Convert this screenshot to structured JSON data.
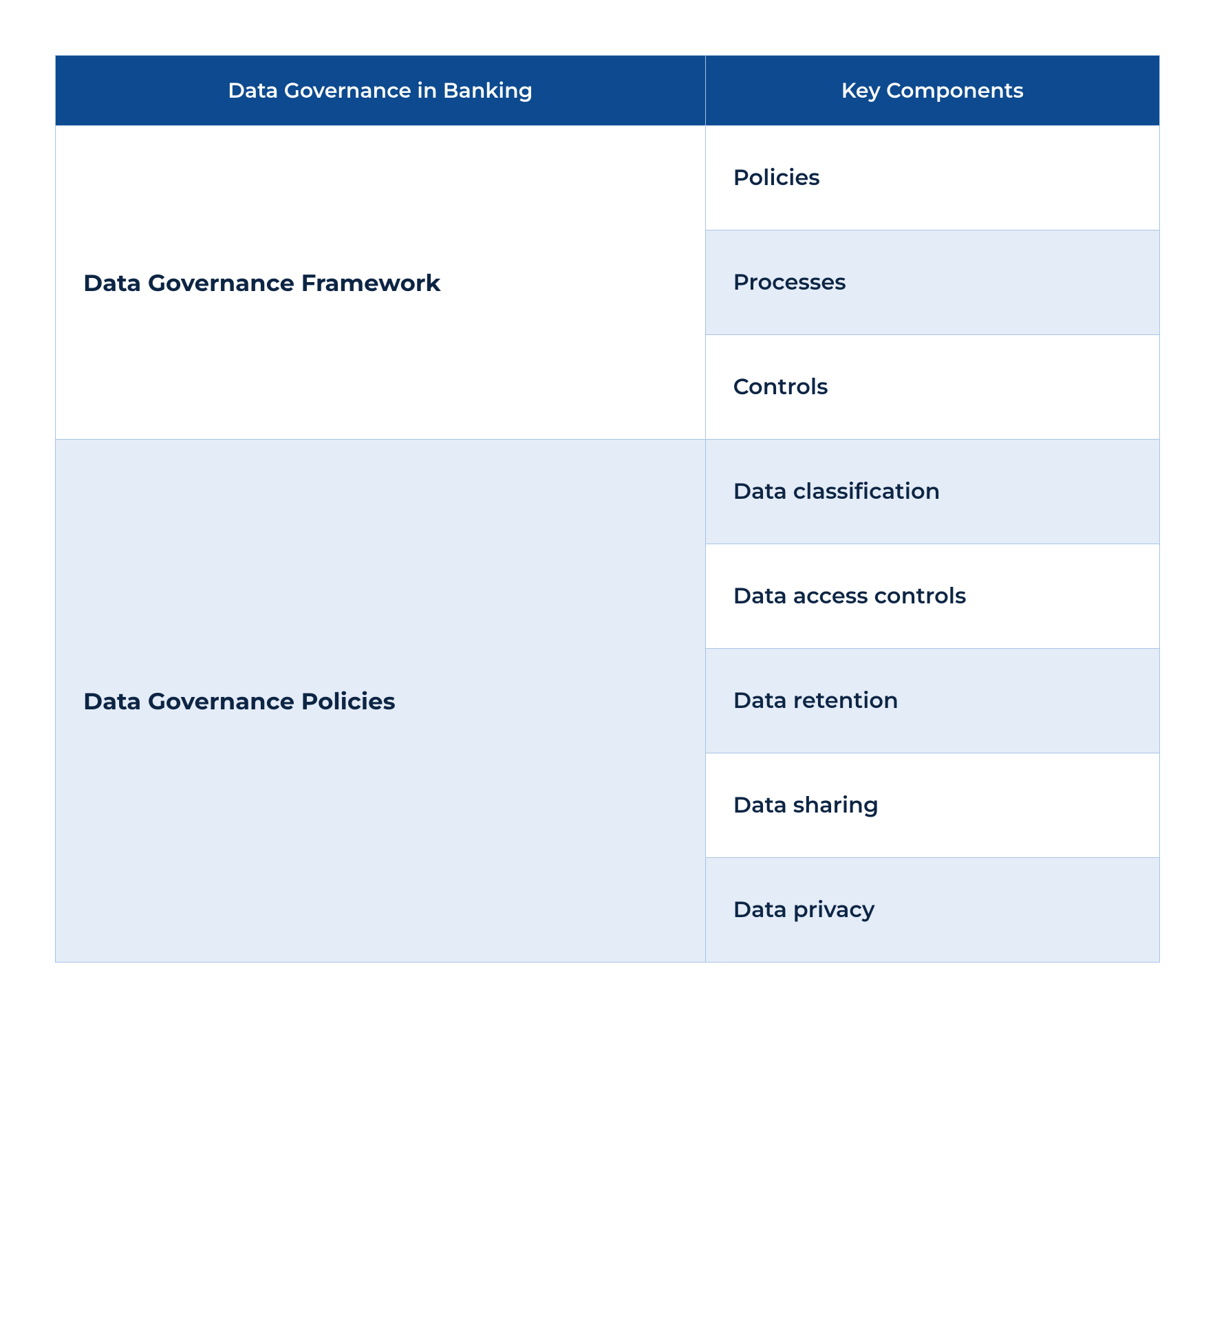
{
  "table": {
    "headers": {
      "col1": "Data Governance in Banking",
      "col2": "Key Components"
    },
    "groups": [
      {
        "category": "Data Governance Framework",
        "category_bg": "#ffffff",
        "components": [
          {
            "label": "Policies",
            "bg": "#ffffff"
          },
          {
            "label": "Processes",
            "bg": "#e4ecf7"
          },
          {
            "label": "Controls",
            "bg": "#ffffff"
          }
        ]
      },
      {
        "category": "Data Governance Policies",
        "category_bg": "#e4ecf7",
        "components": [
          {
            "label": "Data classification",
            "bg": "#e4ecf7"
          },
          {
            "label": "Data access controls",
            "bg": "#ffffff"
          },
          {
            "label": "Data retention",
            "bg": "#e4ecf7"
          },
          {
            "label": "Data sharing",
            "bg": "#ffffff"
          },
          {
            "label": "Data privacy",
            "bg": "#e4ecf7"
          }
        ]
      }
    ],
    "colors": {
      "header_bg": "#0d4a8f",
      "header_text": "#ffffff",
      "text": "#0d2544",
      "border": "#a8c5e5",
      "bg_white": "#ffffff",
      "bg_light": "#e4ecf7"
    }
  }
}
